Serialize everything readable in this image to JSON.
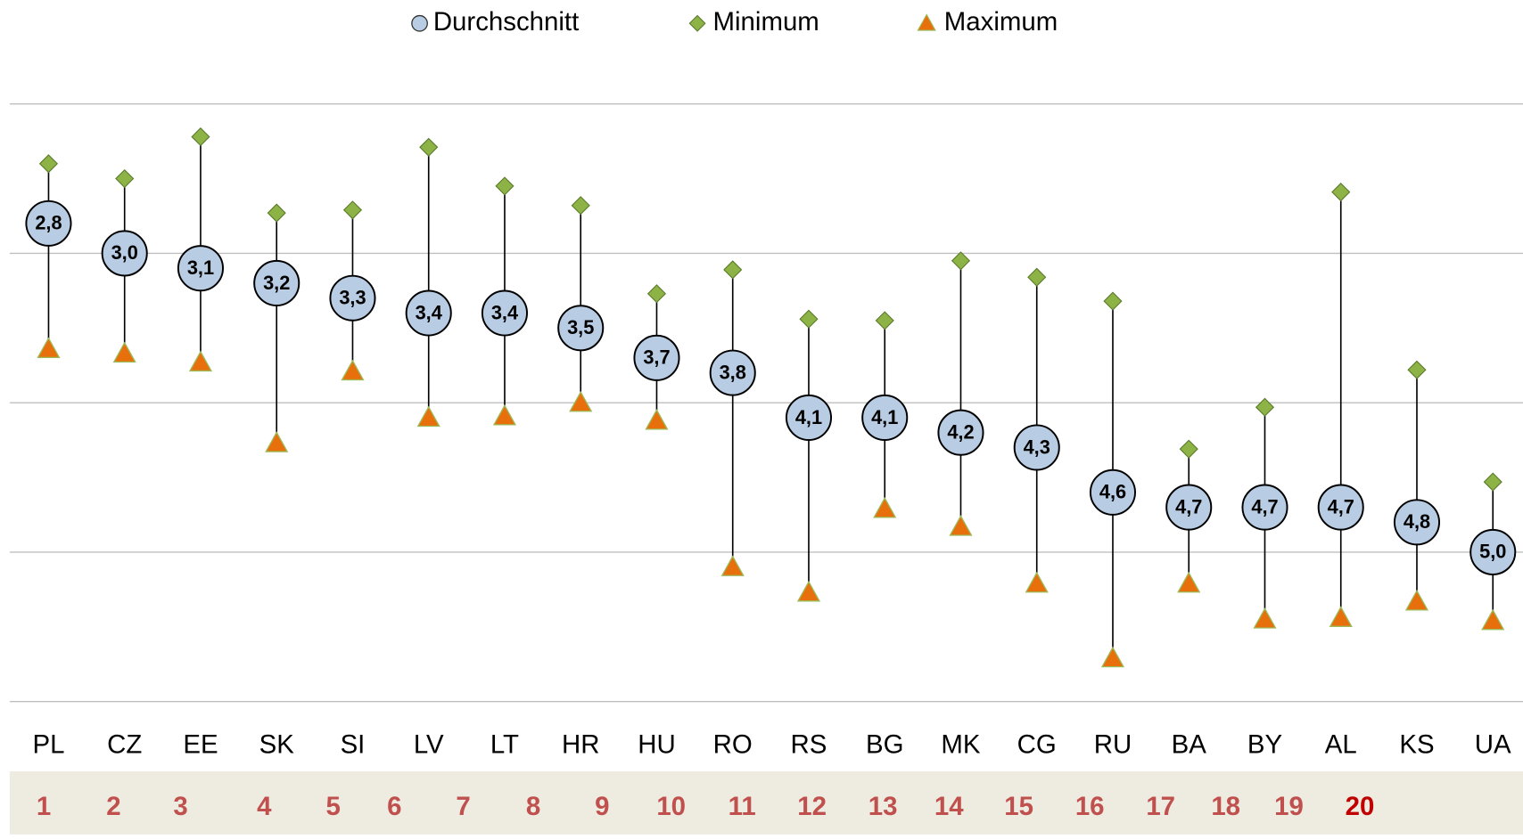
{
  "chart_data": {
    "type": "range-dot",
    "categories": [
      "PL",
      "CZ",
      "EE",
      "SK",
      "SI",
      "LV",
      "LT",
      "HR",
      "HU",
      "RO",
      "RS",
      "BG",
      "MK",
      "CG",
      "RU",
      "BA",
      "BY",
      "AL",
      "KS",
      "UA"
    ],
    "series": [
      {
        "name": "Durchschnitt",
        "color": "#b8cce4",
        "values": [
          2.8,
          3.0,
          3.1,
          3.2,
          3.3,
          3.4,
          3.4,
          3.5,
          3.7,
          3.8,
          4.1,
          4.1,
          4.2,
          4.3,
          4.6,
          4.7,
          4.7,
          4.7,
          4.8,
          5.0
        ],
        "value_labels": [
          "2,8",
          "3,0",
          "3,1",
          "3,2",
          "3,3",
          "3,4",
          "3,4",
          "3,5",
          "3,7",
          "3,8",
          "4,1",
          "4,1",
          "4,2",
          "4,3",
          "4,6",
          "4,7",
          "4,7",
          "4,7",
          "4,8",
          "5,0"
        ]
      },
      {
        "name": "Minimum",
        "color": "#8db347",
        "values": [
          2.4,
          2.5,
          2.22,
          2.73,
          2.71,
          2.29,
          2.55,
          2.68,
          3.27,
          3.11,
          3.44,
          3.45,
          3.05,
          3.16,
          3.32,
          4.31,
          4.03,
          2.59,
          3.78,
          4.53
        ]
      },
      {
        "name": "Maximum",
        "color": "#e8700c",
        "values": [
          3.64,
          3.67,
          3.73,
          4.27,
          3.79,
          4.1,
          4.09,
          4.0,
          4.12,
          5.1,
          5.27,
          4.71,
          4.83,
          5.21,
          5.71,
          5.21,
          5.45,
          5.44,
          5.33,
          5.46
        ]
      }
    ],
    "ylim": [
      2,
      6
    ],
    "yticks": [
      2,
      3,
      4,
      5,
      6
    ],
    "y_reversed": true,
    "grid": true,
    "rank_row": [
      "1",
      "2",
      "3",
      "4",
      "5",
      "6",
      "7",
      "8",
      "9",
      "10",
      "11",
      "12",
      "13",
      "14",
      "15",
      "16",
      "17",
      "18",
      "19",
      "20"
    ]
  }
}
